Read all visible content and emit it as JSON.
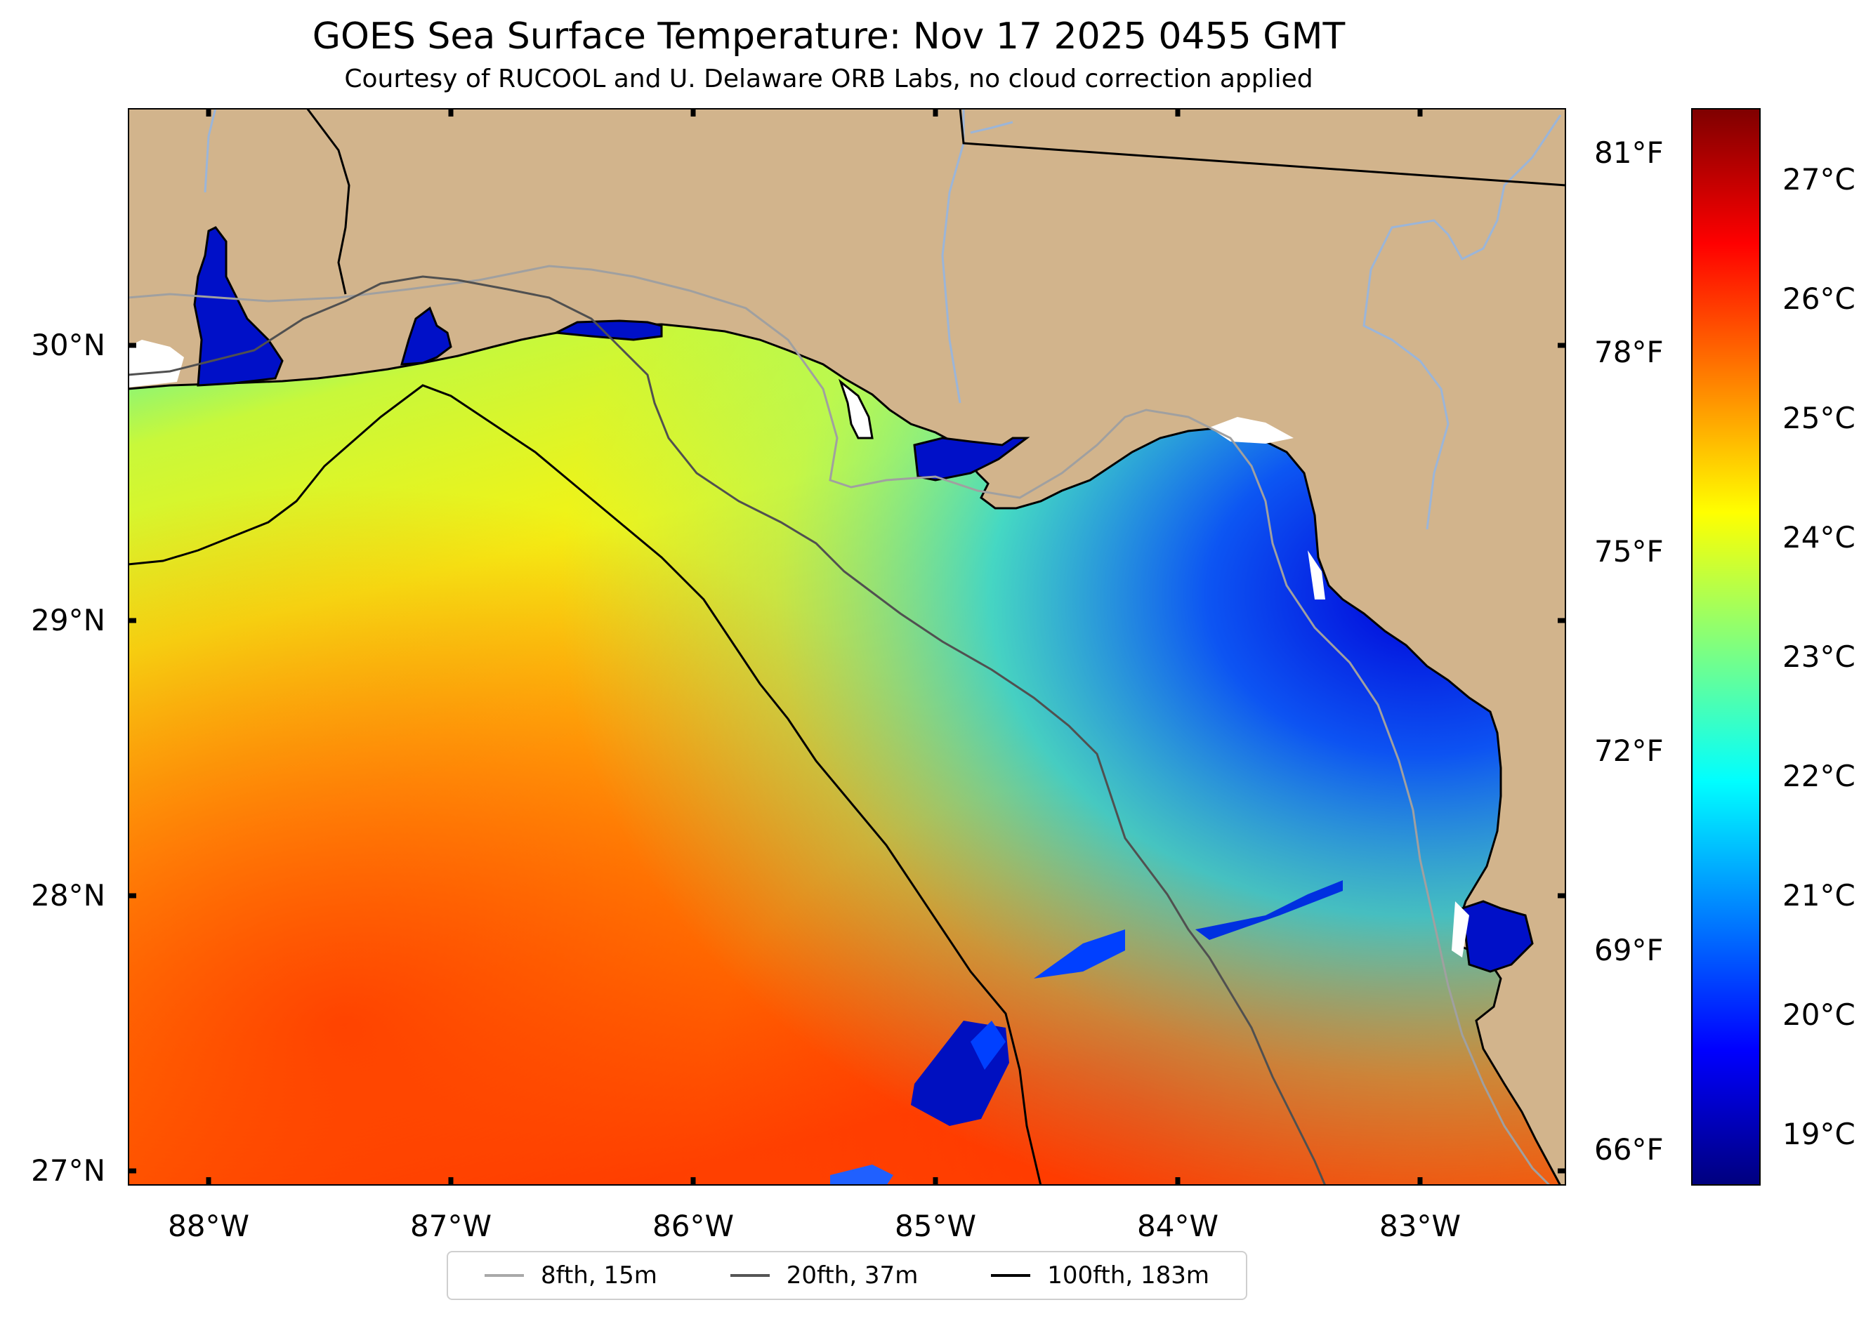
{
  "title": "GOES Sea Surface Temperature: Nov 17 2025 0455 GMT",
  "subtitle": "Courtesy of RUCOOL and U. Delaware ORB Labs, no cloud correction applied",
  "lat_labels": [
    "30°N",
    "29°N",
    "28°N",
    "27°N"
  ],
  "lon_labels": [
    "88°W",
    "87°W",
    "86°W",
    "85°W",
    "84°W",
    "83°W"
  ],
  "fahrenheit_labels": [
    "81°F",
    "78°F",
    "75°F",
    "72°F",
    "69°F",
    "66°F"
  ],
  "colorbar_labels": [
    "27°C",
    "26°C",
    "25°C",
    "24°C",
    "23°C",
    "22°C",
    "21°C",
    "20°C",
    "19°C"
  ],
  "colors": {
    "land": "#d2b48c",
    "coastline": "#000000",
    "isobath_8fth": "#a0a0a0",
    "isobath_20fth": "#505050",
    "isobath_100fth": "#000000",
    "river": "#9bb5d8"
  },
  "legend": [
    {
      "label": "8fth, 15m",
      "color": "#a9a9a9"
    },
    {
      "label": "20fth, 37m",
      "color": "#555555"
    },
    {
      "label": "100fth, 183m",
      "color": "#000000"
    }
  ]
}
